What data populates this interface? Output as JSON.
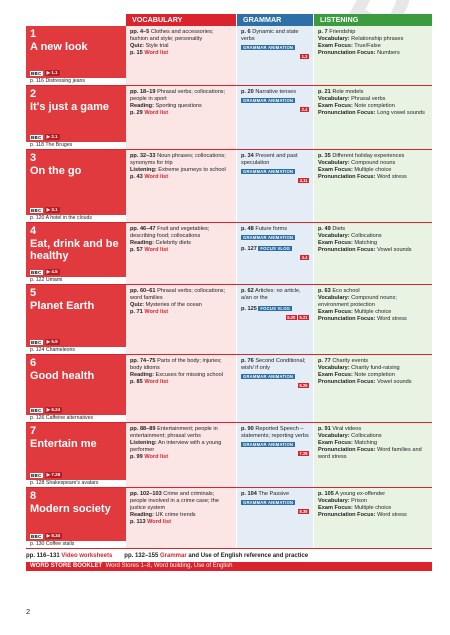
{
  "headers": {
    "vocabulary": "VOCABULARY",
    "grammar": "GRAMMAR",
    "listening": "LISTENING"
  },
  "bbc": {
    "logo": "BBC",
    "video_icon": "film-icon"
  },
  "units": [
    {
      "num": "1",
      "title": "A new look",
      "video": "1.1",
      "extra": "p. 116 Distressing jeans",
      "vocab": {
        "pages": "pp. 4–5",
        "text": "Clothes and accessories; fashion and style; personality",
        "reading_label": "Quiz:",
        "reading_text": "Style trial",
        "wl_page": "p. 15",
        "wl": "Word list"
      },
      "grammar": {
        "page": "p. 6",
        "text": "Dynamic and state verbs",
        "tag": "GRAMMAR ANIMATION",
        "chips": [
          "1.2"
        ],
        "page2": "",
        "tag2": ""
      },
      "listening": {
        "page": "p. 7",
        "text": "Friendship",
        "vocab_label": "Vocabulary:",
        "vocab_text": "Relationship phrases",
        "exam_label": "Exam Focus:",
        "exam_text": "True/False",
        "pron_label": "Pronunciation Focus:",
        "pron_text": "Numbers"
      }
    },
    {
      "num": "2",
      "title": "It's just a game",
      "video": "2.1",
      "extra": "p. 118 The Bruges",
      "vocab": {
        "pages": "pp. 18–19",
        "text": "Phrasal verbs; collocations; people in sport",
        "reading_label": "Reading:",
        "reading_text": "Sporting questions",
        "wl_page": "p. 29",
        "wl": "Word list"
      },
      "grammar": {
        "page": "p. 20",
        "text": "Narrative tenses",
        "tag": "GRAMMAR ANIMATION",
        "chips": [
          "2.4"
        ],
        "page2": "",
        "tag2": ""
      },
      "listening": {
        "page": "p. 21",
        "text": "Role models",
        "vocab_label": "Vocabulary:",
        "vocab_text": "Phrasal verbs",
        "exam_label": "Exam Focus:",
        "exam_text": "Note completion",
        "pron_label": "Pronunciation Focus:",
        "pron_text": "Long vowel sounds"
      }
    },
    {
      "num": "3",
      "title": "On the go",
      "video": "3.1",
      "extra": "p. 120 A hotel in the clouds",
      "vocab": {
        "pages": "pp. 32–33",
        "text": "Noun phrases; collocations; synonyms for trip",
        "reading_label": "Listening:",
        "reading_text": "Extreme journeys to school",
        "wl_page": "p. 43",
        "wl": "Word list"
      },
      "grammar": {
        "page": "p. 34",
        "text": "Present and past speculation",
        "tag": "GRAMMAR ANIMATION",
        "chips": [
          "3.11"
        ],
        "page2": "",
        "tag2": ""
      },
      "listening": {
        "page": "p. 35",
        "text": "Different holiday experiences",
        "vocab_label": "Vocabulary:",
        "vocab_text": "Compound nouns",
        "exam_label": "Exam Focus:",
        "exam_text": "Multiple choice",
        "pron_label": "Pronunciation Focus:",
        "pron_text": "Word stress"
      }
    },
    {
      "num": "4",
      "title": "Eat, drink and be healthy",
      "video": "4.5",
      "extra": "p. 122 Umami",
      "vocab": {
        "pages": "pp. 46–47",
        "text": "Fruit and vegetables; describing food; collocations",
        "reading_label": "Reading:",
        "reading_text": "Celebrity diets",
        "wl_page": "p. 57",
        "wl": "Word list"
      },
      "grammar": {
        "page": "p. 48",
        "text": "Future forms",
        "tag": "GRAMMAR ANIMATION",
        "chips": [
          "4.4"
        ],
        "page2": "p. 127",
        "tag2": "FOCUS VLOG"
      },
      "listening": {
        "page": "p. 49",
        "text": "Diets",
        "vocab_label": "Vocabulary:",
        "vocab_text": "Collocations",
        "exam_label": "Exam Focus:",
        "exam_text": "Matching",
        "pron_label": "Pronunciation Focus:",
        "pron_text": "Vowel sounds"
      }
    },
    {
      "num": "5",
      "title": "Planet Earth",
      "video": "5.9",
      "extra": "p. 124 Chameleons",
      "vocab": {
        "pages": "pp. 60–61",
        "text": "Phrasal verbs; collocations; word families",
        "reading_label": "Quiz:",
        "reading_text": "Mysteries of the ocean",
        "wl_page": "p. 71",
        "wl": "Word list"
      },
      "grammar": {
        "page": "p. 62",
        "text": "Articles: no article, a/an or the",
        "tag": "",
        "chips": [
          "5.20",
          "5.21"
        ],
        "page2": "p. 125",
        "tag2": "FOCUS VLOG"
      },
      "listening": {
        "page": "p. 63",
        "text": "Eco school",
        "vocab_label": "Vocabulary:",
        "vocab_text": "Compound nouns; environment protection",
        "exam_label": "Exam Focus:",
        "exam_text": "Multiple choice",
        "pron_label": "Pronunciation Focus:",
        "pron_text": "Word stress"
      }
    },
    {
      "num": "6",
      "title": "Good health",
      "video": "6.24",
      "extra": "p. 126 Caffeine alternatives",
      "vocab": {
        "pages": "pp. 74–75",
        "text": "Parts of the body; injuries; body idioms",
        "reading_label": "Reading:",
        "reading_text": "Excuses for missing school",
        "wl_page": "p. 85",
        "wl": "Word list"
      },
      "grammar": {
        "page": "p. 76",
        "text": "Second Conditional; wish/ if only",
        "tag": "GRAMMAR ANIMATION",
        "chips": [
          "6.25"
        ],
        "page2": "",
        "tag2": ""
      },
      "listening": {
        "page": "p. 77",
        "text": "Charity events",
        "vocab_label": "Vocabulary:",
        "vocab_text": "Charity fund-raising",
        "exam_label": "Exam Focus:",
        "exam_text": "Note completion",
        "pron_label": "Pronunciation Focus:",
        "pron_text": "Vowel sounds"
      }
    },
    {
      "num": "7",
      "title": "Entertain me",
      "video": "7.28",
      "extra": "p. 128 Shakespeare's avatars",
      "vocab": {
        "pages": "pp. 88–89",
        "text": "Entertainment; people in entertainment; phrasal verbs",
        "reading_label": "Listening:",
        "reading_text": "An interview with a young performer",
        "wl_page": "p. 99",
        "wl": "Word list"
      },
      "grammar": {
        "page": "p. 90",
        "text": "Reported Speech – statements; reporting verbs",
        "tag": "GRAMMAR ANIMATION",
        "chips": [
          "7.29"
        ],
        "page2": "",
        "tag2": ""
      },
      "listening": {
        "page": "p. 91",
        "text": "Viral videos",
        "vocab_label": "Vocabulary:",
        "vocab_text": "Collocations",
        "exam_label": "Exam Focus:",
        "exam_text": "Matching",
        "pron_label": "Pronunciation Focus:",
        "pron_text": "Word families and word stress"
      }
    },
    {
      "num": "8",
      "title": "Modern society",
      "video": "8.34",
      "extra": "p. 130 Coffee stalls",
      "vocab": {
        "pages": "pp. 102–103",
        "text": "Crime and criminals; people involved in a crime case; the justice system",
        "reading_label": "Reading:",
        "reading_text": "UK crime trends",
        "wl_page": "p. 113",
        "wl": "Word list"
      },
      "grammar": {
        "page": "p. 104",
        "text": "The Passive",
        "tag": "GRAMMAR ANIMATION",
        "chips": [
          "8.35"
        ],
        "page2": "",
        "tag2": ""
      },
      "listening": {
        "page": "p. 105",
        "text": "A young ex-offender",
        "vocab_label": "Vocabulary:",
        "vocab_text": "Prison",
        "exam_label": "Exam Focus:",
        "exam_text": "Multiple choice",
        "pron_label": "Pronunciation Focus:",
        "pron_text": "Word stress"
      }
    }
  ],
  "footer": {
    "video_pages": "pp. 116–131",
    "video_label": "Video worksheets",
    "grammar_pages": "pp. 132–155",
    "grammar_word": "Grammar",
    "grammar_rest": "and Use of English reference and practice",
    "booklet": "WORD STORE BOOKLET",
    "booklet_rest": "Word Stores 1–8, Word building, Use of English"
  },
  "page_number": "2",
  "watermark": "SAMPLE"
}
